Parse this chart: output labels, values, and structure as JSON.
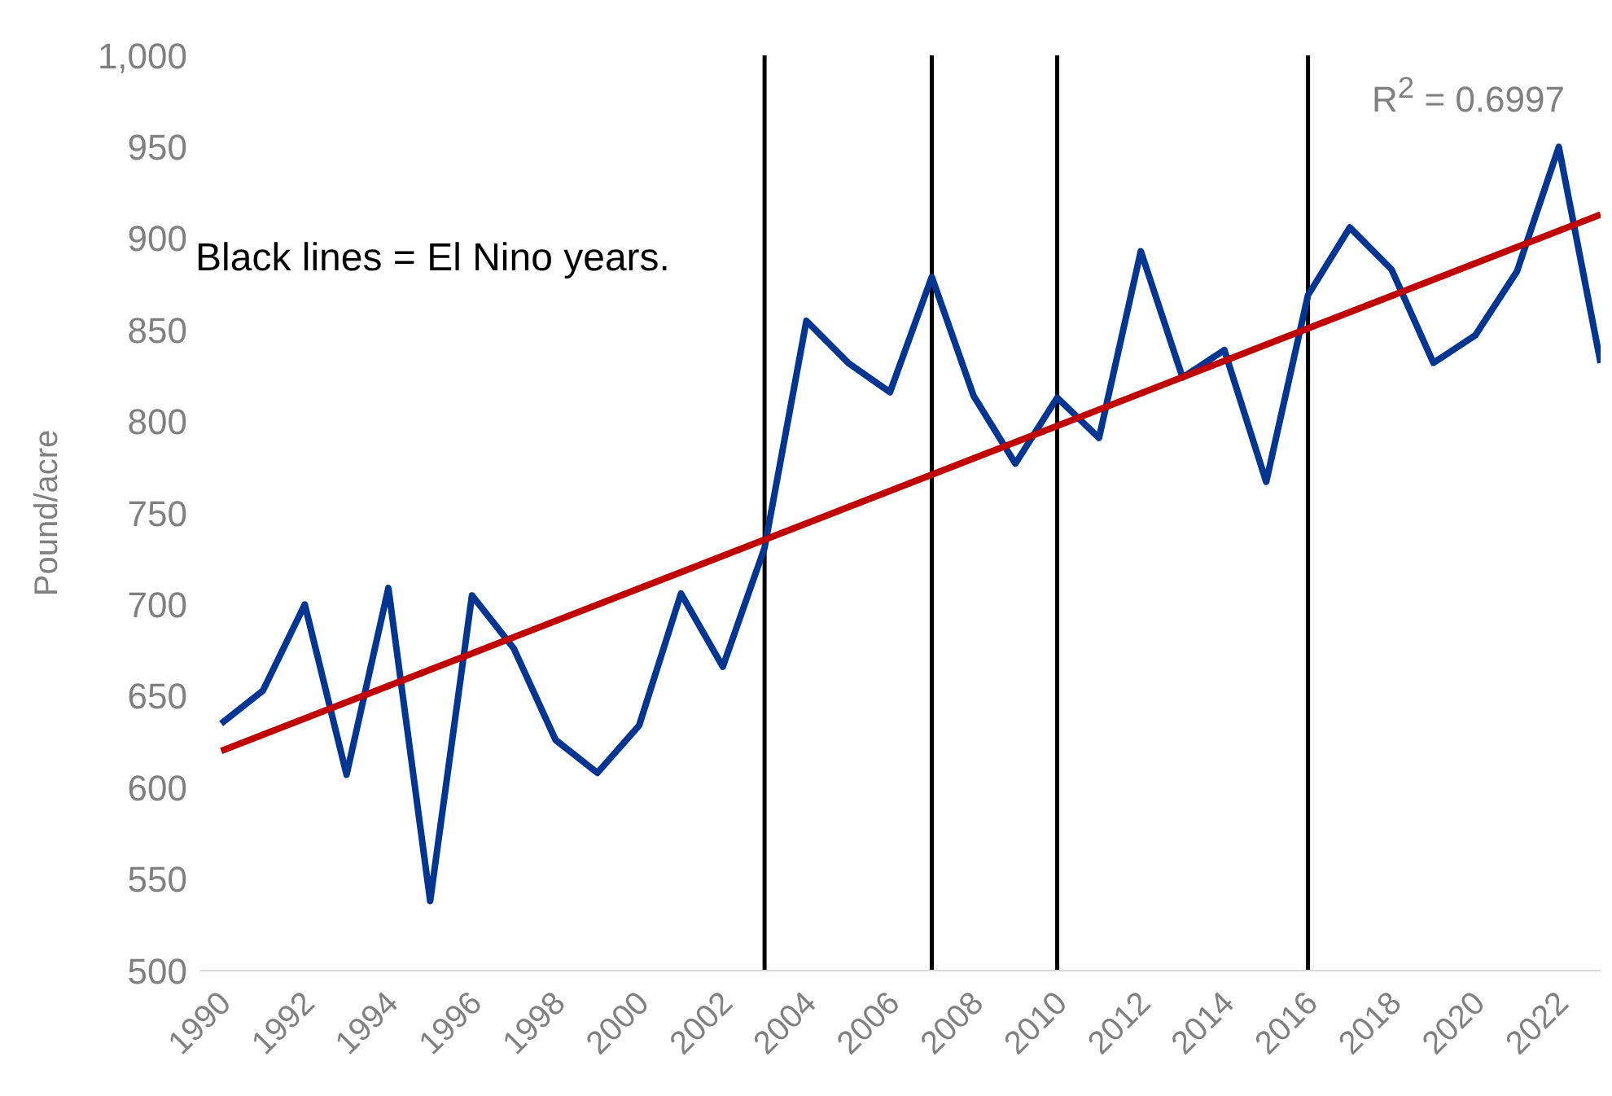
{
  "chart_data": {
    "type": "line",
    "ylabel": "Pound/acre",
    "x": [
      1990,
      1991,
      1992,
      1993,
      1994,
      1995,
      1996,
      1997,
      1998,
      1999,
      2000,
      2001,
      2002,
      2003,
      2004,
      2005,
      2006,
      2007,
      2008,
      2009,
      2010,
      2011,
      2012,
      2013,
      2014,
      2015,
      2016,
      2017,
      2018,
      2019,
      2020,
      2021,
      2022,
      2023
    ],
    "series": [
      {
        "color": "#003591",
        "values": [
          635,
          653,
          700,
          607,
          709,
          538,
          705,
          676,
          626,
          608,
          634,
          706,
          666,
          731,
          855,
          832,
          816,
          879,
          814,
          777,
          813,
          791,
          893,
          824,
          839,
          767,
          869,
          906,
          883,
          832,
          847,
          882,
          950,
          832
        ]
      },
      {
        "type": "line",
        "color": "#c00000",
        "x": [
          1990,
          2023
        ],
        "values": [
          620,
          913
        ]
      }
    ],
    "xlim": [
      1989.5,
      2023
    ],
    "xticks": [
      1990,
      1992,
      1994,
      1996,
      1998,
      2000,
      2002,
      2004,
      2006,
      2008,
      2010,
      2012,
      2014,
      2016,
      2018,
      2020,
      2022
    ],
    "ylim": [
      500,
      1000
    ],
    "yticks": [
      500,
      550,
      600,
      650,
      700,
      750,
      800,
      850,
      900,
      950,
      {
        "value": 1000,
        "label": "1,000"
      }
    ],
    "ref_lines": [
      {
        "axis": "x",
        "value": 2003,
        "color": "#000000"
      },
      {
        "axis": "x",
        "value": 2007,
        "color": "#000000"
      },
      {
        "axis": "x",
        "value": 2010,
        "color": "#000000"
      },
      {
        "axis": "x",
        "value": 2016,
        "color": "#000000"
      }
    ],
    "annotations": [
      "Black lines = El Nino years.",
      "R$^{2}$ = 0.6997"
    ],
    "grid": false,
    "legend": false,
    "marker": "none",
    "line_style": "solid"
  }
}
